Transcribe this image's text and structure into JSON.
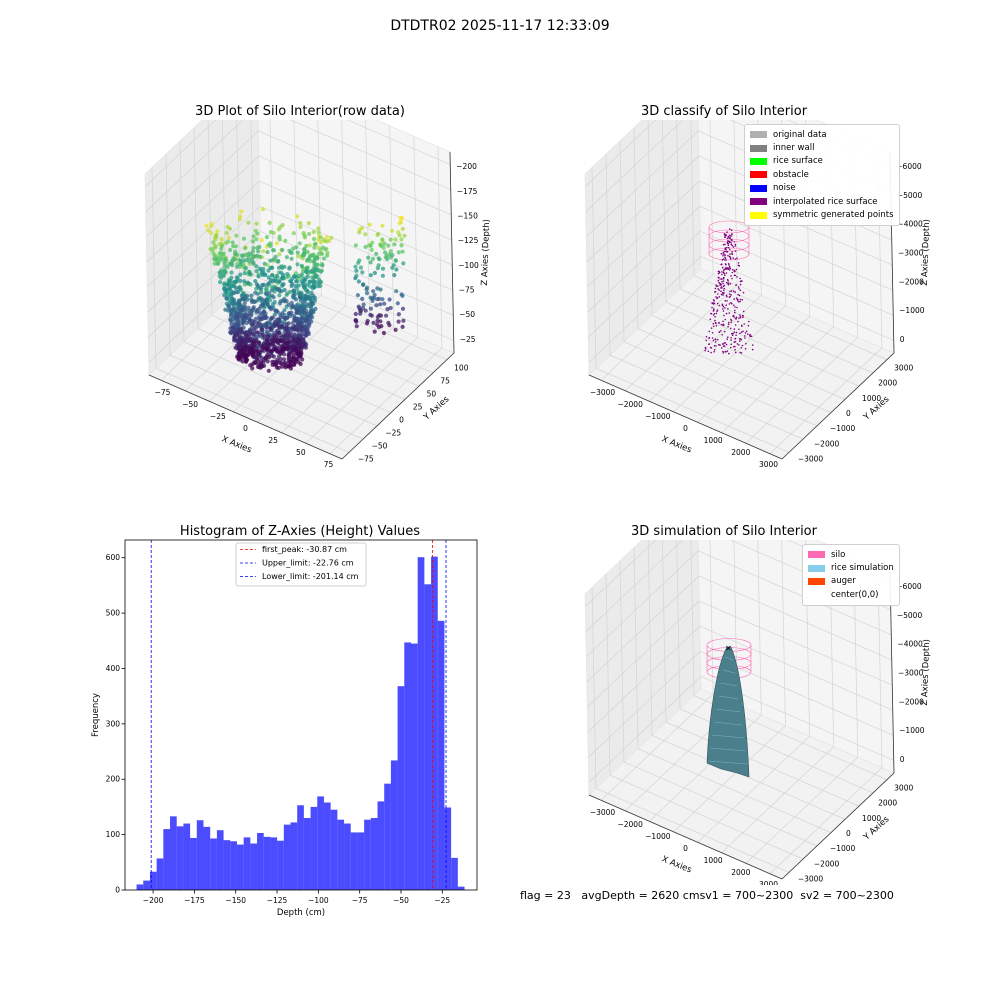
{
  "suptitle": "DTDTR02 2025-11-17 12:33:09",
  "panels": {
    "raw": {
      "title": "3D Plot of Silo Interior(row data)",
      "xlabel": "X Axies",
      "ylabel": "Y Axies",
      "zlabel": "Z Axies (Depth)",
      "xticks": [
        "−75",
        "−50",
        "−25",
        "0",
        "25",
        "50",
        "75"
      ],
      "yticks": [
        "−75",
        "−50",
        "−25",
        "0",
        "25",
        "50",
        "75",
        "100"
      ],
      "zticks": [
        "−25",
        "−50",
        "−75",
        "−100",
        "−125",
        "−150",
        "−175",
        "−200"
      ]
    },
    "classify": {
      "title": "3D classify of Silo Interior",
      "xlabel": "X Axies",
      "ylabel": "Y Axies",
      "zlabel": "Z Axies (Depth)",
      "xticks": [
        "−3000",
        "−2000",
        "−1000",
        "0",
        "1000",
        "2000",
        "3000"
      ],
      "yticks": [
        "−3000",
        "−2000",
        "−1000",
        "0",
        "1000",
        "2000",
        "3000"
      ],
      "zticks": [
        "0",
        "−1000",
        "−2000",
        "−3000",
        "−4000",
        "−5000",
        "−6000"
      ],
      "legend": [
        {
          "label": "original data",
          "color": "#b0b0b0"
        },
        {
          "label": "inner wall",
          "color": "#808080"
        },
        {
          "label": "rice surface",
          "color": "#00ff00"
        },
        {
          "label": "obstacle",
          "color": "#ff0000"
        },
        {
          "label": "noise",
          "color": "#0000ff"
        },
        {
          "label": "interpolated rice surface",
          "color": "#800080"
        },
        {
          "label": "symmetric generated points",
          "color": "#ffff00"
        }
      ]
    },
    "hist": {
      "title": "Histogram of Z-Axies (Height) Values",
      "xlabel": "Depth (cm)",
      "ylabel": "Frequency"
    },
    "sim": {
      "title": "3D simulation of Silo Interior",
      "xlabel": "X Axies",
      "ylabel": "Y Axies",
      "zlabel": "Z Axies (Depth)",
      "xticks": [
        "−3000",
        "−2000",
        "−1000",
        "0",
        "1000",
        "2000",
        "3000"
      ],
      "yticks": [
        "−3000",
        "−2000",
        "−1000",
        "0",
        "1000",
        "2000",
        "3000"
      ],
      "zticks": [
        "0",
        "−1000",
        "−2000",
        "−3000",
        "−4000",
        "−5000",
        "−6000"
      ],
      "legend": [
        {
          "label": "silo",
          "color": "#ff69b4"
        },
        {
          "label": "rice simulation",
          "color": "#87ceeb"
        },
        {
          "label": "auger",
          "color": "#ff4500"
        },
        {
          "label": "center(0,0)",
          "color": "#ffffff"
        }
      ]
    }
  },
  "status": {
    "flag": "flag = 23",
    "avg_depth": "avgDepth = 2620 cm",
    "sv1": "sv1 = 700~2300",
    "sv2": "sv2 = 700~2300"
  },
  "chart_data": [
    {
      "type": "bar",
      "title": "Histogram of Z-Axies (Height) Values",
      "xlabel": "Depth (cm)",
      "ylabel": "Frequency",
      "bin_width": 4.05,
      "bin_start": -210,
      "values": [
        10,
        17,
        33,
        57,
        110,
        133,
        115,
        120,
        94,
        126,
        114,
        93,
        108,
        90,
        88,
        82,
        95,
        84,
        103,
        96,
        95,
        89,
        118,
        122,
        153,
        130,
        150,
        169,
        158,
        145,
        127,
        120,
        104,
        104,
        127,
        130,
        160,
        192,
        234,
        368,
        447,
        445,
        601,
        552,
        602,
        486,
        149,
        58,
        6
      ],
      "xlim": [
        -217,
        -4
      ],
      "ylim": [
        0,
        632
      ],
      "xticks": [
        -200,
        -175,
        -150,
        -125,
        -100,
        -75,
        -50,
        -25
      ],
      "yticks": [
        0,
        100,
        200,
        300,
        400,
        500,
        600
      ],
      "bar_color": "#0000ff",
      "vlines": [
        {
          "label": "first_peak: -30.87 cm",
          "x": -30.87,
          "color": "#ff0000"
        },
        {
          "label": "Upper_limit: -22.76 cm",
          "x": -22.76,
          "color": "#0000ff"
        },
        {
          "label": "Lower_limit: -201.14 cm",
          "x": -201.14,
          "color": "#0000ff"
        }
      ],
      "legend_position": "top-center"
    }
  ]
}
